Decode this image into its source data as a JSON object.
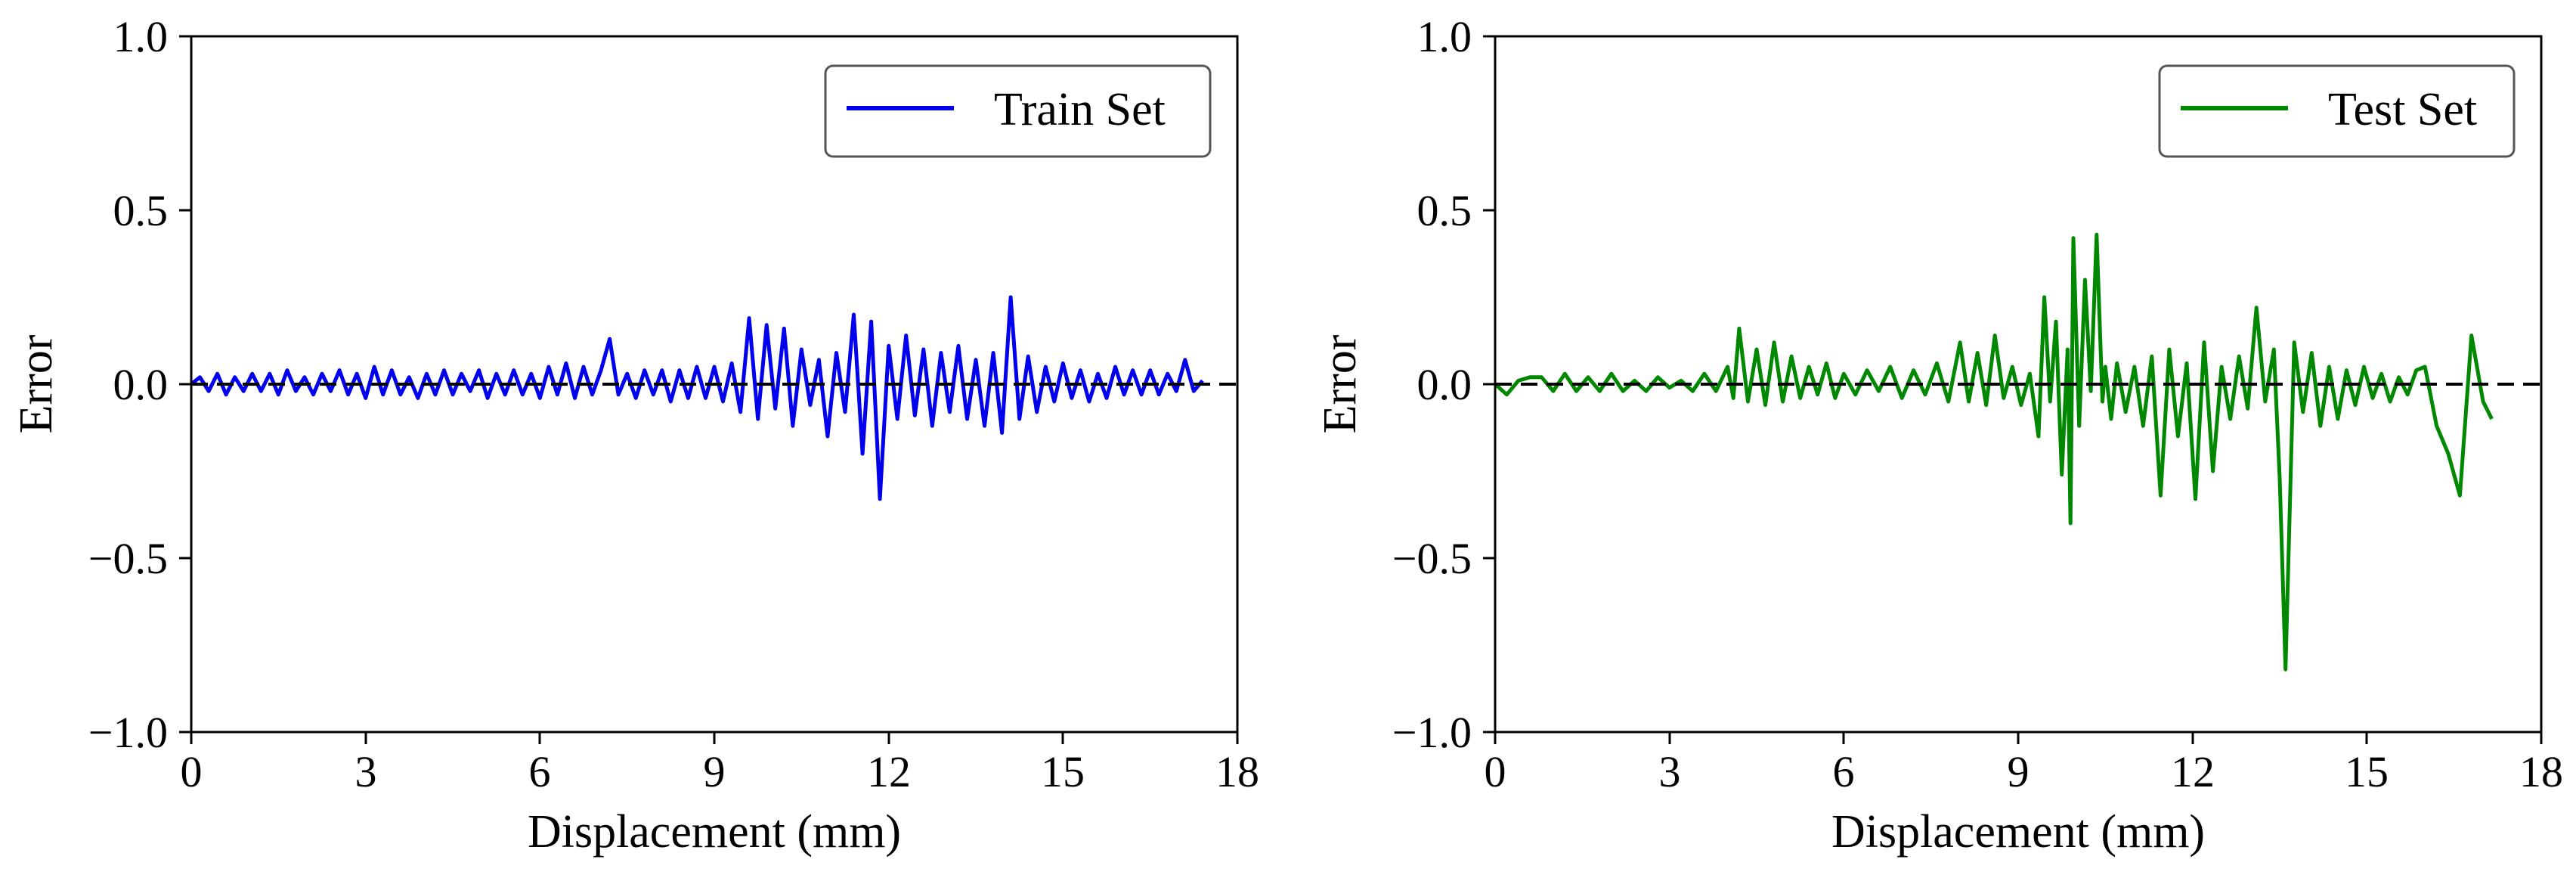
{
  "chart_data": [
    {
      "type": "line",
      "title": "",
      "xlabel": "Displacement (mm)",
      "ylabel": "Error",
      "xlim": [
        0,
        18
      ],
      "ylim": [
        -1.0,
        1.0
      ],
      "xticks": [
        0,
        3,
        6,
        9,
        12,
        15,
        18
      ],
      "xtick_labels": [
        "0",
        "3",
        "6",
        "9",
        "12",
        "15",
        "18"
      ],
      "yticks": [
        1.0,
        0.5,
        0.0,
        -0.5,
        -1.0
      ],
      "ytick_labels": [
        "1.0",
        "0.5",
        "0.0",
        "−0.5",
        "−1.0"
      ],
      "grid": false,
      "reference_line": {
        "y": 0.0,
        "style": "dashed",
        "color": "#000000"
      },
      "legend": {
        "position": "top-right"
      },
      "series": [
        {
          "name": "Train Set",
          "color": "#0000ee",
          "x": [
            0.0,
            0.15,
            0.3,
            0.45,
            0.6,
            0.75,
            0.9,
            1.05,
            1.2,
            1.35,
            1.5,
            1.65,
            1.8,
            1.95,
            2.1,
            2.25,
            2.4,
            2.55,
            2.7,
            2.85,
            3.0,
            3.15,
            3.3,
            3.45,
            3.6,
            3.75,
            3.9,
            4.05,
            4.2,
            4.35,
            4.5,
            4.65,
            4.8,
            4.95,
            5.1,
            5.25,
            5.4,
            5.55,
            5.7,
            5.85,
            6.0,
            6.15,
            6.3,
            6.45,
            6.6,
            6.75,
            6.9,
            7.05,
            7.2,
            7.35,
            7.5,
            7.65,
            7.8,
            7.95,
            8.1,
            8.25,
            8.4,
            8.55,
            8.7,
            8.85,
            9.0,
            9.15,
            9.3,
            9.45,
            9.6,
            9.75,
            9.9,
            10.05,
            10.2,
            10.35,
            10.5,
            10.65,
            10.8,
            10.95,
            11.1,
            11.25,
            11.4,
            11.55,
            11.7,
            11.85,
            12.0,
            12.15,
            12.3,
            12.45,
            12.6,
            12.75,
            12.9,
            13.05,
            13.2,
            13.35,
            13.5,
            13.65,
            13.8,
            13.95,
            14.1,
            14.25,
            14.4,
            14.55,
            14.7,
            14.85,
            15.0,
            15.15,
            15.3,
            15.45,
            15.6,
            15.75,
            15.9,
            16.05,
            16.2,
            16.35,
            16.5,
            16.65,
            16.8,
            16.95,
            17.1,
            17.25,
            17.4
          ],
          "y": [
            0.0,
            0.02,
            -0.02,
            0.03,
            -0.03,
            0.02,
            -0.02,
            0.03,
            -0.02,
            0.03,
            -0.03,
            0.04,
            -0.02,
            0.02,
            -0.03,
            0.03,
            -0.02,
            0.04,
            -0.03,
            0.03,
            -0.04,
            0.05,
            -0.03,
            0.04,
            -0.03,
            0.02,
            -0.04,
            0.03,
            -0.03,
            0.04,
            -0.03,
            0.03,
            -0.02,
            0.04,
            -0.04,
            0.03,
            -0.03,
            0.04,
            -0.03,
            0.03,
            -0.04,
            0.05,
            -0.03,
            0.06,
            -0.04,
            0.05,
            -0.03,
            0.04,
            0.13,
            -0.03,
            0.03,
            -0.04,
            0.04,
            -0.03,
            0.04,
            -0.05,
            0.04,
            -0.04,
            0.05,
            -0.04,
            0.05,
            -0.05,
            0.06,
            -0.08,
            0.19,
            -0.1,
            0.17,
            -0.07,
            0.16,
            -0.12,
            0.1,
            -0.06,
            0.07,
            -0.15,
            0.09,
            -0.08,
            0.2,
            -0.2,
            0.18,
            -0.33,
            0.11,
            -0.1,
            0.14,
            -0.09,
            0.1,
            -0.12,
            0.09,
            -0.08,
            0.11,
            -0.1,
            0.07,
            -0.12,
            0.09,
            -0.14,
            0.25,
            -0.1,
            0.08,
            -0.08,
            0.05,
            -0.05,
            0.06,
            -0.04,
            0.04,
            -0.05,
            0.03,
            -0.04,
            0.05,
            -0.03,
            0.04,
            -0.03,
            0.04,
            -0.03,
            0.03,
            -0.02,
            0.07,
            -0.02,
            0.01
          ]
        },
        {
          "name": "Test Set",
          "color": "#008800",
          "x": [
            0.0,
            0.2,
            0.4,
            0.6,
            0.8,
            1.0,
            1.2,
            1.4,
            1.6,
            1.8,
            2.0,
            2.2,
            2.4,
            2.6,
            2.8,
            3.0,
            3.2,
            3.4,
            3.6,
            3.8,
            4.0,
            4.1,
            4.2,
            4.35,
            4.5,
            4.65,
            4.8,
            4.95,
            5.1,
            5.25,
            5.4,
            5.55,
            5.7,
            5.85,
            6.0,
            6.2,
            6.4,
            6.6,
            6.8,
            7.0,
            7.2,
            7.4,
            7.6,
            7.8,
            8.0,
            8.15,
            8.3,
            8.45,
            8.6,
            8.75,
            8.9,
            9.05,
            9.2,
            9.35,
            9.45,
            9.55,
            9.65,
            9.75,
            9.85,
            9.9,
            9.95,
            10.05,
            10.15,
            10.25,
            10.35,
            10.45,
            10.5,
            10.6,
            10.7,
            10.85,
            11.0,
            11.15,
            11.3,
            11.45,
            11.6,
            11.75,
            11.9,
            12.05,
            12.2,
            12.35,
            12.5,
            12.65,
            12.8,
            12.95,
            13.1,
            13.25,
            13.4,
            13.5,
            13.6,
            13.75,
            13.9,
            14.05,
            14.2,
            14.35,
            14.5,
            14.65,
            14.8,
            14.95,
            15.1,
            15.25,
            15.4,
            15.55,
            15.7,
            15.85,
            16.0,
            16.2,
            16.4,
            16.6,
            16.8,
            17.0,
            17.15
          ],
          "y": [
            0.0,
            -0.03,
            0.01,
            0.02,
            0.02,
            -0.02,
            0.03,
            -0.02,
            0.02,
            -0.02,
            0.03,
            -0.02,
            0.01,
            -0.02,
            0.02,
            -0.01,
            0.01,
            -0.02,
            0.03,
            -0.02,
            0.05,
            -0.04,
            0.16,
            -0.05,
            0.1,
            -0.06,
            0.12,
            -0.05,
            0.08,
            -0.04,
            0.05,
            -0.03,
            0.06,
            -0.04,
            0.03,
            -0.03,
            0.04,
            -0.02,
            0.05,
            -0.04,
            0.04,
            -0.03,
            0.06,
            -0.05,
            0.12,
            -0.05,
            0.09,
            -0.06,
            0.14,
            -0.04,
            0.05,
            -0.06,
            0.03,
            -0.15,
            0.25,
            -0.05,
            0.18,
            -0.26,
            0.1,
            -0.4,
            0.42,
            -0.12,
            0.3,
            -0.02,
            0.43,
            -0.05,
            0.05,
            -0.1,
            0.06,
            -0.08,
            0.05,
            -0.12,
            0.08,
            -0.32,
            0.1,
            -0.15,
            0.06,
            -0.33,
            0.12,
            -0.25,
            0.05,
            -0.1,
            0.08,
            -0.07,
            0.22,
            -0.05,
            0.1,
            -0.27,
            -0.82,
            0.12,
            -0.08,
            0.09,
            -0.12,
            0.05,
            -0.1,
            0.04,
            -0.06,
            0.05,
            -0.04,
            0.03,
            -0.05,
            0.02,
            -0.03,
            0.04,
            0.05,
            -0.12,
            -0.2,
            -0.32,
            0.14,
            -0.05,
            -0.1
          ]
        }
      ]
    }
  ]
}
